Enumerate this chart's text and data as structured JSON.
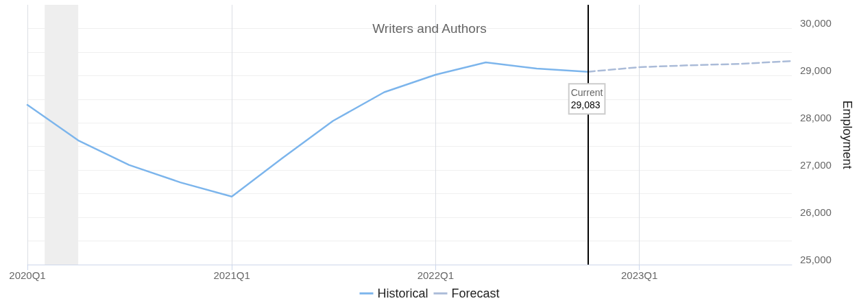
{
  "chart_data": {
    "type": "line",
    "title": "Writers and Authors",
    "ylabel": "Employment",
    "x": [
      "2020-01-01",
      "2020-04-01",
      "2020-07-01",
      "2020-10-01",
      "2021-01-01",
      "2021-04-01",
      "2021-07-01",
      "2021-10-01",
      "2022-01-01",
      "2022-04-01",
      "2022-07-01",
      "2022-10-01"
    ],
    "series": [
      {
        "name": "Historical",
        "color": "#7cb5ec",
        "line_style": "solid",
        "values": [
          28380,
          27630,
          27110,
          26740,
          26440,
          27250,
          28040,
          28650,
          29020,
          29280,
          29150,
          29083
        ]
      },
      {
        "name": "Forecast",
        "color": "#aabbd8",
        "line_style": "dashed",
        "x": [
          "2022-10-01",
          "2023-01-01",
          "2023-04-01",
          "2023-07-01",
          "2023-10-01"
        ],
        "values": [
          29083,
          29180,
          29220,
          29250,
          29310
        ]
      }
    ],
    "xlim": [
      "2020-01-01",
      "2023-10-01"
    ],
    "xticks": [
      {
        "value": "2020-01-01",
        "label": "2020Q1"
      },
      {
        "value": "2021-01-01",
        "label": "2021Q1"
      },
      {
        "value": "2022-01-01",
        "label": "2022Q1"
      },
      {
        "value": "2023-01-01",
        "label": "2023Q1"
      }
    ],
    "ylim": [
      25000,
      30500
    ],
    "yticks": [
      {
        "value": 25000,
        "label": "25,000"
      },
      {
        "value": 26000,
        "label": "26,000"
      },
      {
        "value": 27000,
        "label": "27,000"
      },
      {
        "value": 28000,
        "label": "28,000"
      },
      {
        "value": 29000,
        "label": "29,000"
      },
      {
        "value": 30000,
        "label": "30,000"
      }
    ],
    "bands": [
      {
        "axis": "x",
        "from": "2020-02-01",
        "to": "2020-04-01",
        "color": "#eeeeee"
      }
    ],
    "ref_lines": [
      {
        "axis": "x",
        "value": "2022-10-01",
        "label": "Current",
        "color": "#000000",
        "line_style": "solid"
      }
    ],
    "annotations": [
      {
        "text": "29,083",
        "x": "2022-10-01",
        "y": 29083
      }
    ],
    "grid": true,
    "legend": "bottom",
    "marker": "none"
  }
}
